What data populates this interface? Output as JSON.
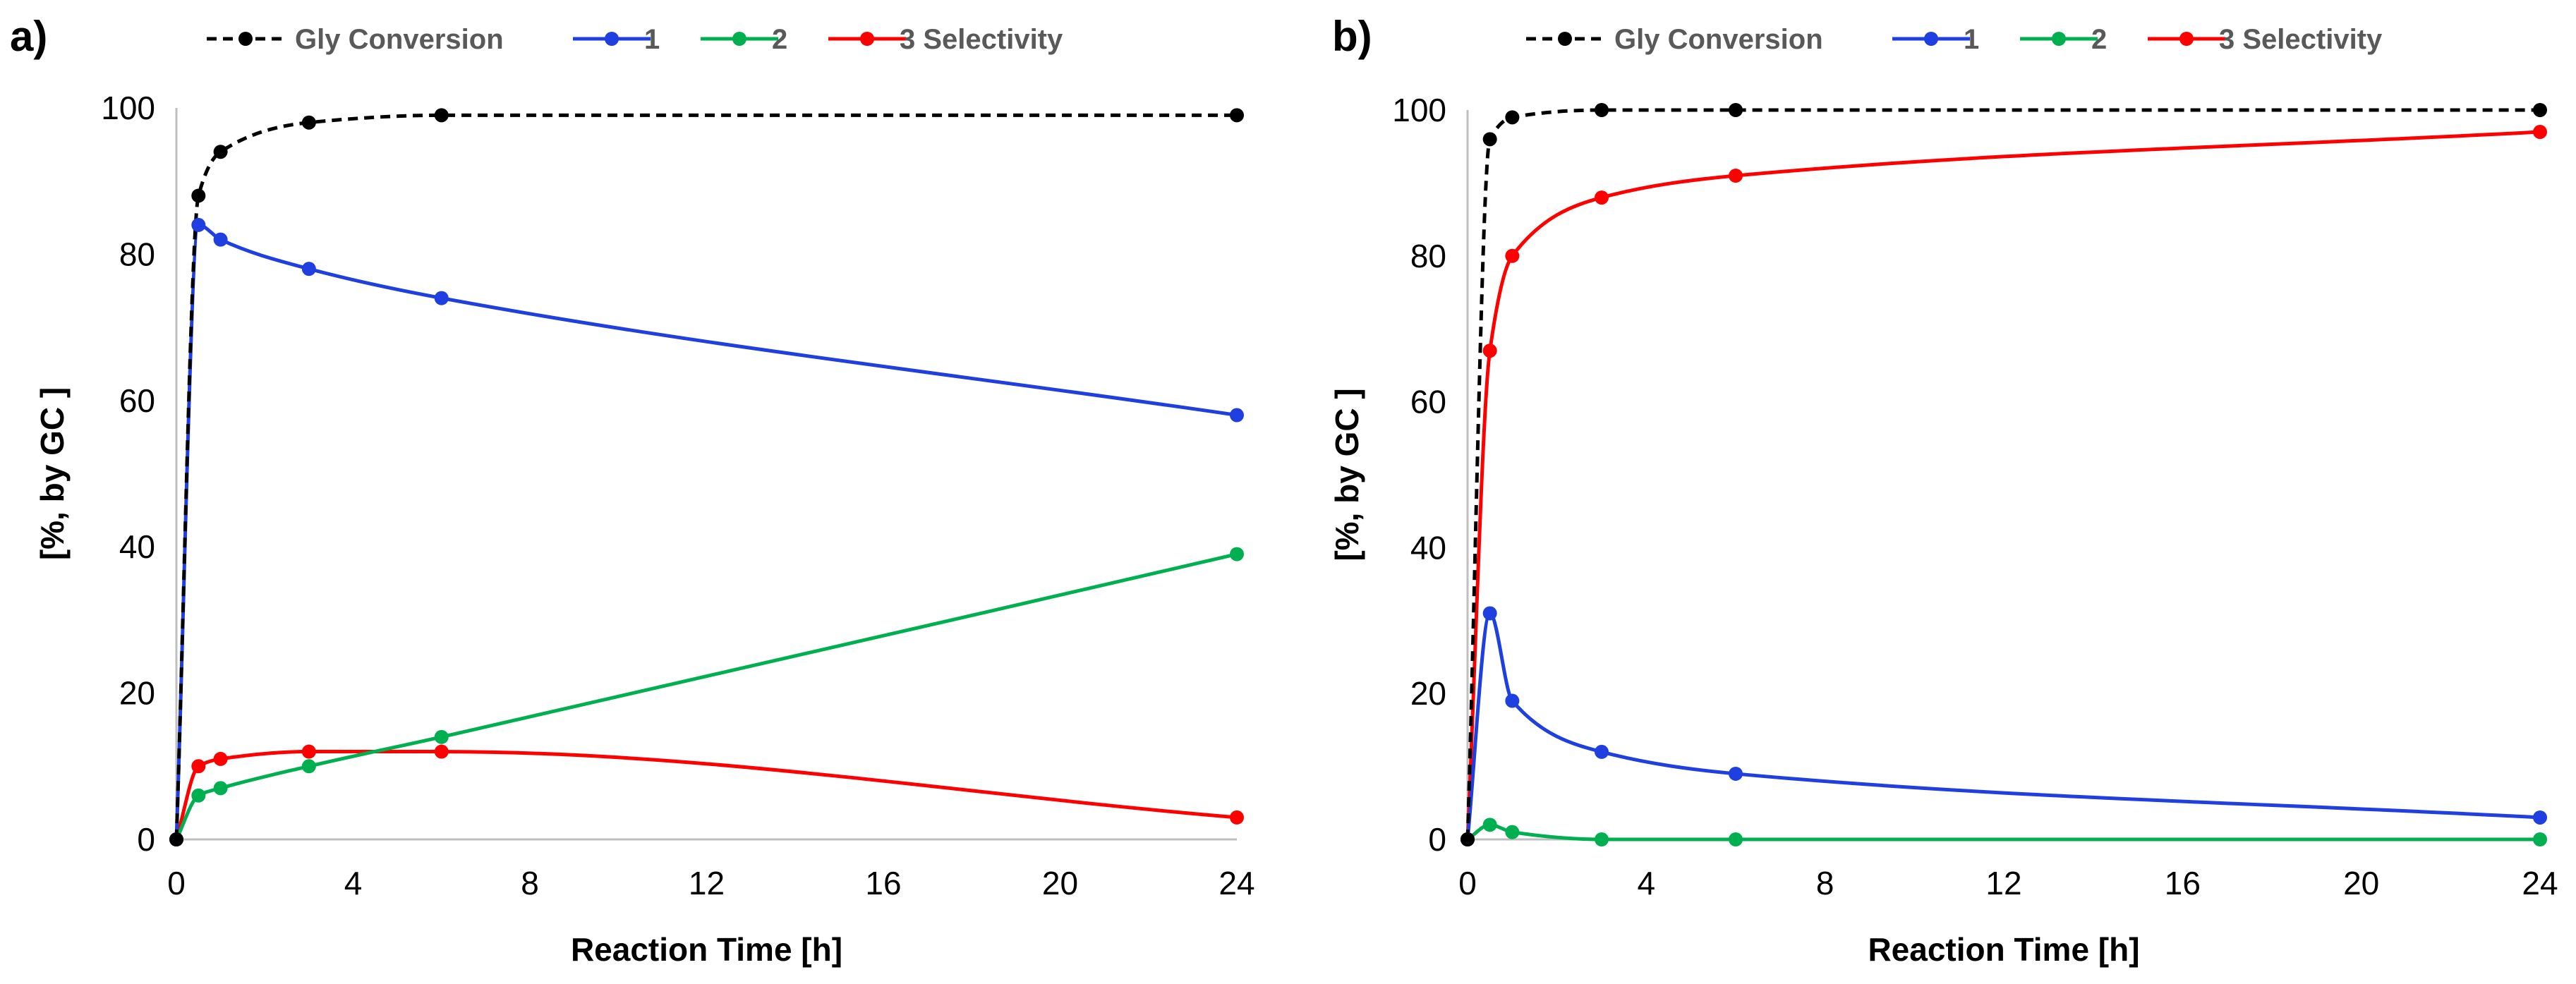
{
  "chart_data": [
    {
      "type": "line",
      "panel_label": "a)",
      "xlabel": "Reaction Time [h]",
      "ylabel": "[%, by GC ]",
      "xlim": [
        0,
        24
      ],
      "ylim": [
        0,
        100
      ],
      "xticks": [
        0,
        4,
        8,
        12,
        16,
        20,
        24
      ],
      "yticks": [
        0,
        20,
        40,
        60,
        80,
        100
      ],
      "legend_position": "top",
      "series": [
        {
          "name": "Gly Conversion",
          "color": "#000000",
          "dashed": true,
          "x": [
            0,
            0.5,
            1,
            3,
            6,
            24
          ],
          "y": [
            0,
            88,
            94,
            98,
            99,
            99
          ]
        },
        {
          "name": "1",
          "color": "#1f3fe0",
          "dashed": false,
          "x": [
            0,
            0.5,
            1,
            3,
            6,
            24
          ],
          "y": [
            0,
            84,
            82,
            78,
            74,
            58
          ]
        },
        {
          "name": "2",
          "color": "#00b050",
          "dashed": false,
          "x": [
            0,
            0.5,
            1,
            3,
            6,
            24
          ],
          "y": [
            0,
            6,
            7,
            10,
            14,
            39
          ]
        },
        {
          "name": "3 Selectivity",
          "color": "#ff0000",
          "dashed": false,
          "x": [
            0,
            0.5,
            1,
            3,
            6,
            24
          ],
          "y": [
            0,
            10,
            11,
            12,
            12,
            3
          ]
        }
      ]
    },
    {
      "type": "line",
      "panel_label": "b)",
      "xlabel": "Reaction Time [h]",
      "ylabel": "[%, by GC ]",
      "xlim": [
        0,
        24
      ],
      "ylim": [
        0,
        100
      ],
      "xticks": [
        0,
        4,
        8,
        12,
        16,
        20,
        24
      ],
      "yticks": [
        0,
        20,
        40,
        60,
        80,
        100
      ],
      "legend_position": "top",
      "series": [
        {
          "name": "Gly Conversion",
          "color": "#000000",
          "dashed": true,
          "x": [
            0,
            0.5,
            1,
            3,
            6,
            24
          ],
          "y": [
            0,
            96,
            99,
            100,
            100,
            100
          ]
        },
        {
          "name": "1",
          "color": "#1f3fe0",
          "dashed": false,
          "x": [
            0,
            0.5,
            1,
            3,
            6,
            24
          ],
          "y": [
            0,
            31,
            19,
            12,
            9,
            3
          ]
        },
        {
          "name": "2",
          "color": "#00b050",
          "dashed": false,
          "x": [
            0,
            0.5,
            1,
            3,
            6,
            24
          ],
          "y": [
            0,
            2,
            1,
            0,
            0,
            0
          ]
        },
        {
          "name": "3 Selectivity",
          "color": "#ff0000",
          "dashed": false,
          "x": [
            0,
            0.5,
            1,
            3,
            6,
            24
          ],
          "y": [
            0,
            67,
            80,
            88,
            91,
            97
          ]
        }
      ]
    }
  ]
}
